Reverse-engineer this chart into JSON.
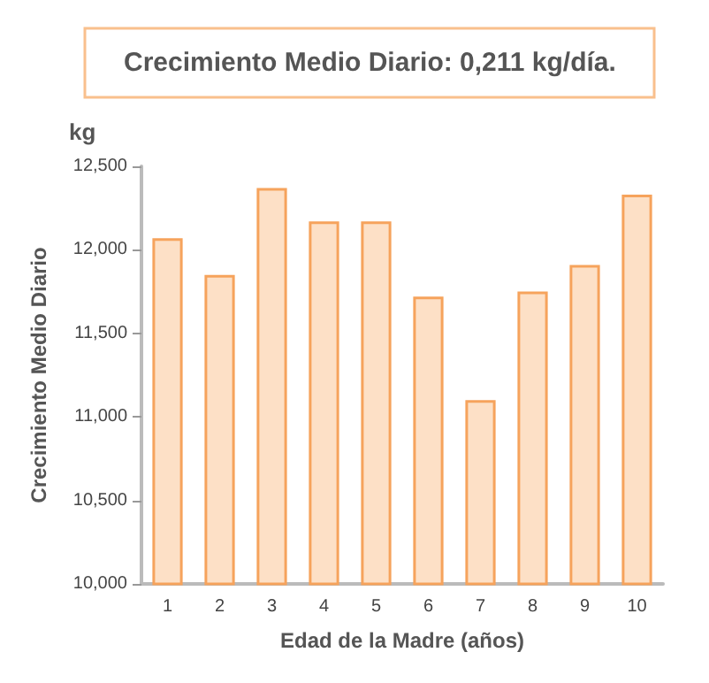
{
  "chart_data": {
    "type": "bar",
    "title": "Crecimiento Medio Diario: 0,211 kg/día.",
    "xlabel": "Edad de la Madre (años)",
    "ylabel": "Crecimiento Medio Diario",
    "annotations": [
      "kg"
    ],
    "categories": [
      "1",
      "2",
      "3",
      "4",
      "5",
      "6",
      "7",
      "8",
      "9",
      "10"
    ],
    "values": [
      12070,
      11850,
      12370,
      12170,
      12170,
      11720,
      11100,
      11750,
      11910,
      12330
    ],
    "color": "#fde0c6",
    "ylim": [
      10000,
      12500
    ],
    "yticks": [
      {
        "value": 10000,
        "label": "10,000"
      },
      {
        "value": 10500,
        "label": "10,500"
      },
      {
        "value": 11000,
        "label": "11,000"
      },
      {
        "value": 11500,
        "label": "11,500"
      },
      {
        "value": 12000,
        "label": "12,000"
      },
      {
        "value": 12500,
        "label": "12,500"
      }
    ],
    "grid": false
  }
}
